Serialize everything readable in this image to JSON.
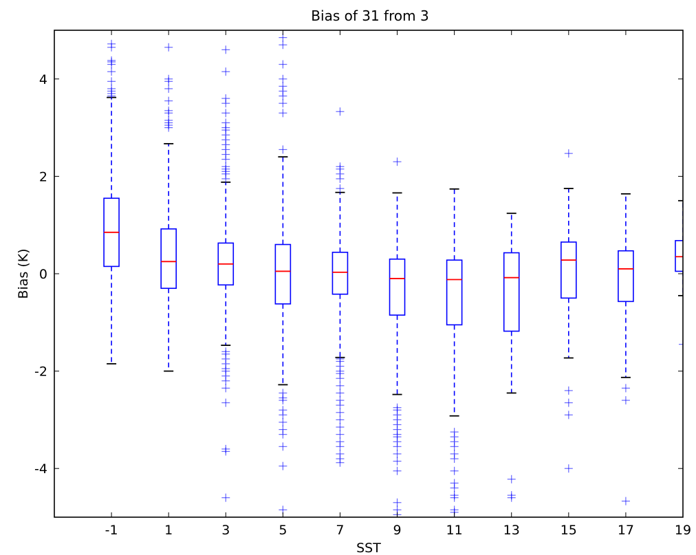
{
  "chart_data": {
    "type": "boxplot",
    "title": "Bias of 31 from 3",
    "xlabel": "SST",
    "ylabel": "Bias (K)",
    "ylim": [
      -5,
      5
    ],
    "xlim": [
      -3,
      19
    ],
    "y_ticks": [
      "-4",
      "-2",
      "0",
      "2",
      "4"
    ],
    "x_ticks": [
      "-1",
      "1",
      "3",
      "5",
      "7",
      "9",
      "11",
      "13",
      "15",
      "17",
      "19"
    ],
    "grid": false,
    "colors": {
      "box": "#0000ff",
      "median": "#ff0000",
      "whisker": "#0000ff",
      "cap": "#000000",
      "outlier": "#0000ff"
    },
    "boxes": [
      {
        "x": -1,
        "q1": 0.15,
        "median": 0.85,
        "q3": 1.55,
        "whisker_low": -1.85,
        "whisker_high": 3.62,
        "outliers": [
          3.65,
          3.7,
          3.75,
          3.8,
          3.95,
          4.15,
          4.3,
          4.35,
          4.38,
          4.65,
          4.72
        ]
      },
      {
        "x": 1,
        "q1": -0.3,
        "median": 0.25,
        "q3": 0.92,
        "whisker_low": -2.0,
        "whisker_high": 2.67,
        "outliers": [
          3.0,
          3.05,
          3.1,
          3.15,
          3.3,
          3.35,
          3.55,
          3.8,
          3.95,
          4.0,
          4.65
        ]
      },
      {
        "x": 3,
        "q1": -0.23,
        "median": 0.2,
        "q3": 0.63,
        "whisker_low": -1.47,
        "whisker_high": 1.88,
        "outliers": [
          1.95,
          2.05,
          2.1,
          2.15,
          2.2,
          2.35,
          2.45,
          2.55,
          2.65,
          2.75,
          2.85,
          2.95,
          3.0,
          3.1,
          3.3,
          3.5,
          3.6,
          4.15,
          4.6,
          -1.6,
          -1.65,
          -1.75,
          -1.85,
          -1.95,
          -2.0,
          -2.1,
          -2.2,
          -2.35,
          -2.65,
          -3.6,
          -3.65,
          -4.6
        ]
      },
      {
        "x": 5,
        "q1": -0.62,
        "median": 0.05,
        "q3": 0.6,
        "whisker_low": -2.28,
        "whisker_high": 2.4,
        "outliers": [
          2.55,
          3.3,
          3.5,
          3.65,
          3.75,
          3.85,
          4.0,
          4.3,
          4.7,
          4.85,
          -2.45,
          -2.55,
          -2.6,
          -2.8,
          -2.9,
          -3.05,
          -3.2,
          -3.3,
          -3.55,
          -3.95,
          -4.85
        ]
      },
      {
        "x": 7,
        "q1": -0.42,
        "median": 0.03,
        "q3": 0.44,
        "whisker_low": -1.72,
        "whisker_high": 1.67,
        "outliers": [
          1.75,
          1.95,
          2.05,
          2.15,
          2.2,
          3.33,
          -1.75,
          -1.8,
          -1.9,
          -2.0,
          -2.05,
          -2.15,
          -2.3,
          -2.45,
          -2.6,
          -2.7,
          -2.85,
          -3.0,
          -3.15,
          -3.3,
          -3.45,
          -3.55,
          -3.7,
          -3.8,
          -3.88
        ]
      },
      {
        "x": 9,
        "q1": -0.85,
        "median": -0.1,
        "q3": 0.3,
        "whisker_low": -2.48,
        "whisker_high": 1.66,
        "outliers": [
          2.3,
          -2.75,
          -2.8,
          -2.9,
          -3.0,
          -3.1,
          -3.2,
          -3.3,
          -3.35,
          -3.45,
          -3.55,
          -3.7,
          -3.85,
          -4.05,
          -4.7,
          -4.85,
          -4.95
        ]
      },
      {
        "x": 11,
        "q1": -1.05,
        "median": -0.12,
        "q3": 0.28,
        "whisker_low": -2.92,
        "whisker_high": 1.74,
        "outliers": [
          -3.25,
          -3.35,
          -3.45,
          -3.55,
          -3.7,
          -3.8,
          -4.05,
          -4.3,
          -4.4,
          -4.55,
          -4.6,
          -4.85,
          -4.9
        ]
      },
      {
        "x": 13,
        "q1": -1.18,
        "median": -0.08,
        "q3": 0.43,
        "whisker_low": -2.45,
        "whisker_high": 1.24,
        "outliers": [
          -4.22,
          -4.55,
          -4.6
        ]
      },
      {
        "x": 15,
        "q1": -0.5,
        "median": 0.28,
        "q3": 0.65,
        "whisker_low": -1.73,
        "whisker_high": 1.75,
        "outliers": [
          2.47,
          -2.4,
          -2.65,
          -2.9,
          -4.0
        ]
      },
      {
        "x": 17,
        "q1": -0.57,
        "median": 0.1,
        "q3": 0.47,
        "whisker_low": -2.13,
        "whisker_high": 1.64,
        "outliers": [
          -2.35,
          -2.6,
          -4.67
        ]
      },
      {
        "x": 19,
        "q1": 0.05,
        "median": 0.35,
        "q3": 0.68,
        "whisker_low": -0.45,
        "whisker_high": 1.5,
        "outliers": [
          -1.45
        ]
      }
    ]
  }
}
